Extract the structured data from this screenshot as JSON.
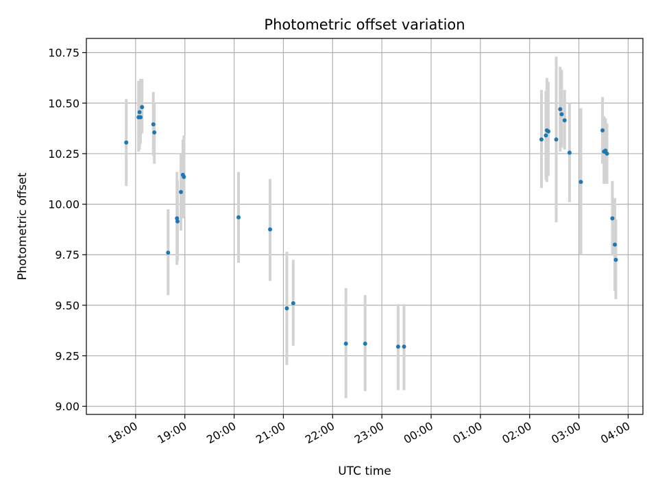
{
  "chart_data": {
    "type": "scatter",
    "title": "Photometric offset variation",
    "xlabel": "UTC time",
    "ylabel": "Photometric offset",
    "x_unit": "hours after 00:00 of first day",
    "xlim": [
      17.0,
      28.3
    ],
    "ylim": [
      8.96,
      10.82
    ],
    "grid": true,
    "x_ticks": [
      {
        "value": 18,
        "label": "18:00"
      },
      {
        "value": 19,
        "label": "19:00"
      },
      {
        "value": 20,
        "label": "20:00"
      },
      {
        "value": 21,
        "label": "21:00"
      },
      {
        "value": 22,
        "label": "22:00"
      },
      {
        "value": 23,
        "label": "23:00"
      },
      {
        "value": 24,
        "label": "00:00"
      },
      {
        "value": 25,
        "label": "01:00"
      },
      {
        "value": 26,
        "label": "02:00"
      },
      {
        "value": 27,
        "label": "03:00"
      },
      {
        "value": 28,
        "label": "04:00"
      }
    ],
    "y_ticks": [
      {
        "value": 9.0,
        "label": "9.00"
      },
      {
        "value": 9.25,
        "label": "9.25"
      },
      {
        "value": 9.5,
        "label": "9.50"
      },
      {
        "value": 9.75,
        "label": "9.75"
      },
      {
        "value": 10.0,
        "label": "10.00"
      },
      {
        "value": 10.25,
        "label": "10.25"
      },
      {
        "value": 10.5,
        "label": "10.50"
      },
      {
        "value": 10.75,
        "label": "10.75"
      }
    ],
    "colors": {
      "points": "#1f77b4",
      "error_bars": "#d3d3d3",
      "grid": "#b0b0b0"
    },
    "points": [
      {
        "x": 17.81,
        "y": 10.305,
        "err_low": 10.09,
        "err_high": 10.52
      },
      {
        "x": 18.06,
        "y": 10.43,
        "err_low": 10.26,
        "err_high": 10.61
      },
      {
        "x": 18.08,
        "y": 10.455,
        "err_low": 10.27,
        "err_high": 10.61
      },
      {
        "x": 18.1,
        "y": 10.43,
        "err_low": 10.3,
        "err_high": 10.62
      },
      {
        "x": 18.13,
        "y": 10.48,
        "err_low": 10.35,
        "err_high": 10.62
      },
      {
        "x": 18.36,
        "y": 10.395,
        "err_low": 10.24,
        "err_high": 10.555
      },
      {
        "x": 18.38,
        "y": 10.355,
        "err_low": 10.2,
        "err_high": 10.5
      },
      {
        "x": 18.66,
        "y": 9.76,
        "err_low": 9.55,
        "err_high": 9.975
      },
      {
        "x": 18.84,
        "y": 9.93,
        "err_low": 9.7,
        "err_high": 10.16
      },
      {
        "x": 18.85,
        "y": 9.915,
        "err_low": 9.72,
        "err_high": 10.12
      },
      {
        "x": 18.92,
        "y": 10.06,
        "err_low": 9.87,
        "err_high": 10.25
      },
      {
        "x": 18.96,
        "y": 10.145,
        "err_low": 9.93,
        "err_high": 10.32
      },
      {
        "x": 18.98,
        "y": 10.135,
        "err_low": 9.94,
        "err_high": 10.34
      },
      {
        "x": 20.09,
        "y": 9.935,
        "err_low": 9.71,
        "err_high": 10.16
      },
      {
        "x": 20.73,
        "y": 9.875,
        "err_low": 9.62,
        "err_high": 10.125
      },
      {
        "x": 21.07,
        "y": 9.485,
        "err_low": 9.205,
        "err_high": 9.765
      },
      {
        "x": 21.2,
        "y": 9.51,
        "err_low": 9.3,
        "err_high": 9.725
      },
      {
        "x": 22.27,
        "y": 9.31,
        "err_low": 9.04,
        "err_high": 9.585
      },
      {
        "x": 22.66,
        "y": 9.31,
        "err_low": 9.075,
        "err_high": 9.55
      },
      {
        "x": 23.33,
        "y": 9.295,
        "err_low": 9.08,
        "err_high": 9.505
      },
      {
        "x": 23.45,
        "y": 9.295,
        "err_low": 9.08,
        "err_high": 9.505
      },
      {
        "x": 26.24,
        "y": 10.32,
        "err_low": 10.08,
        "err_high": 10.565
      },
      {
        "x": 26.33,
        "y": 10.34,
        "err_low": 10.12,
        "err_high": 10.56
      },
      {
        "x": 26.35,
        "y": 10.365,
        "err_low": 10.11,
        "err_high": 10.625
      },
      {
        "x": 26.38,
        "y": 10.36,
        "err_low": 10.14,
        "err_high": 10.605
      },
      {
        "x": 26.54,
        "y": 10.32,
        "err_low": 9.91,
        "err_high": 10.73
      },
      {
        "x": 26.62,
        "y": 10.47,
        "err_low": 10.26,
        "err_high": 10.68
      },
      {
        "x": 26.65,
        "y": 10.445,
        "err_low": 10.28,
        "err_high": 10.665
      },
      {
        "x": 26.71,
        "y": 10.415,
        "err_low": 10.27,
        "err_high": 10.565
      },
      {
        "x": 26.81,
        "y": 10.255,
        "err_low": 10.01,
        "err_high": 10.5
      },
      {
        "x": 27.04,
        "y": 10.11,
        "err_low": 9.75,
        "err_high": 10.475
      },
      {
        "x": 27.48,
        "y": 10.365,
        "err_low": 10.2,
        "err_high": 10.53
      },
      {
        "x": 27.51,
        "y": 10.26,
        "err_low": 10.1,
        "err_high": 10.435
      },
      {
        "x": 27.54,
        "y": 10.265,
        "err_low": 10.11,
        "err_high": 10.425
      },
      {
        "x": 27.57,
        "y": 10.25,
        "err_low": 10.1,
        "err_high": 10.4
      },
      {
        "x": 27.68,
        "y": 9.93,
        "err_low": 9.745,
        "err_high": 10.115
      },
      {
        "x": 27.73,
        "y": 9.8,
        "err_low": 9.57,
        "err_high": 10.03
      },
      {
        "x": 27.75,
        "y": 9.725,
        "err_low": 9.53,
        "err_high": 9.925
      }
    ]
  }
}
